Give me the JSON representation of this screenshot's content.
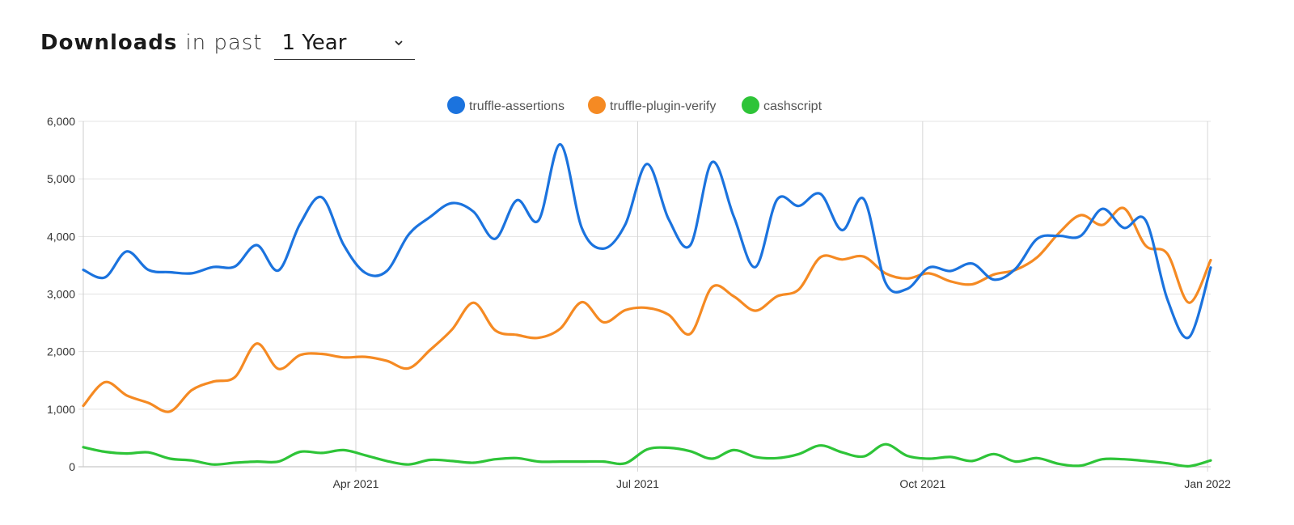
{
  "header": {
    "title_strong": "Downloads",
    "title_rest": "in past",
    "period_selected": "1 Year"
  },
  "chart_data": {
    "type": "line",
    "title": "",
    "xlabel": "",
    "ylabel": "",
    "ylim": [
      0,
      6000
    ],
    "y_ticks": [
      "0",
      "1,000",
      "2,000",
      "3,000",
      "4,000",
      "5,000",
      "6,000"
    ],
    "x_range": [
      "2021-01-03",
      "2022-01-02"
    ],
    "x_ticks": [
      {
        "date": "2021-04-01",
        "label": "Apr 2021"
      },
      {
        "date": "2021-07-01",
        "label": "Jul 2021"
      },
      {
        "date": "2021-10-01",
        "label": "Oct 2021"
      },
      {
        "date": "2022-01-01",
        "label": "Jan 2022"
      }
    ],
    "legend_position": "top-center",
    "grid": true,
    "series": [
      {
        "name": "truffle-assertions",
        "color": "#1b73de",
        "points": [
          [
            "2021-01-03",
            3420
          ],
          [
            "2021-01-10",
            3290
          ],
          [
            "2021-01-17",
            3740
          ],
          [
            "2021-01-24",
            3420
          ],
          [
            "2021-01-31",
            3380
          ],
          [
            "2021-02-07",
            3360
          ],
          [
            "2021-02-14",
            3470
          ],
          [
            "2021-02-21",
            3480
          ],
          [
            "2021-02-28",
            3850
          ],
          [
            "2021-03-07",
            3410
          ],
          [
            "2021-03-14",
            4220
          ],
          [
            "2021-03-21",
            4680
          ],
          [
            "2021-03-28",
            3860
          ],
          [
            "2021-04-04",
            3370
          ],
          [
            "2021-04-11",
            3400
          ],
          [
            "2021-04-18",
            4030
          ],
          [
            "2021-04-25",
            4340
          ],
          [
            "2021-05-02",
            4580
          ],
          [
            "2021-05-09",
            4430
          ],
          [
            "2021-05-16",
            3960
          ],
          [
            "2021-05-23",
            4630
          ],
          [
            "2021-05-30",
            4280
          ],
          [
            "2021-06-06",
            5600
          ],
          [
            "2021-06-13",
            4140
          ],
          [
            "2021-06-20",
            3790
          ],
          [
            "2021-06-27",
            4210
          ],
          [
            "2021-07-04",
            5260
          ],
          [
            "2021-07-11",
            4300
          ],
          [
            "2021-07-18",
            3850
          ],
          [
            "2021-07-25",
            5290
          ],
          [
            "2021-08-01",
            4350
          ],
          [
            "2021-08-08",
            3470
          ],
          [
            "2021-08-15",
            4640
          ],
          [
            "2021-08-22",
            4530
          ],
          [
            "2021-08-29",
            4740
          ],
          [
            "2021-09-05",
            4110
          ],
          [
            "2021-09-12",
            4650
          ],
          [
            "2021-09-19",
            3200
          ],
          [
            "2021-09-26",
            3090
          ],
          [
            "2021-10-03",
            3460
          ],
          [
            "2021-10-10",
            3400
          ],
          [
            "2021-10-17",
            3530
          ],
          [
            "2021-10-24",
            3250
          ],
          [
            "2021-10-31",
            3440
          ],
          [
            "2021-11-07",
            3960
          ],
          [
            "2021-11-14",
            4010
          ],
          [
            "2021-11-21",
            4010
          ],
          [
            "2021-11-28",
            4480
          ],
          [
            "2021-12-05",
            4150
          ],
          [
            "2021-12-12",
            4280
          ],
          [
            "2021-12-19",
            2910
          ],
          [
            "2021-12-26",
            2250
          ],
          [
            "2022-01-02",
            3460
          ]
        ]
      },
      {
        "name": "truffle-plugin-verify",
        "color": "#f58a23",
        "points": [
          [
            "2021-01-03",
            1060
          ],
          [
            "2021-01-10",
            1470
          ],
          [
            "2021-01-17",
            1240
          ],
          [
            "2021-01-24",
            1110
          ],
          [
            "2021-01-31",
            960
          ],
          [
            "2021-02-07",
            1330
          ],
          [
            "2021-02-14",
            1480
          ],
          [
            "2021-02-21",
            1560
          ],
          [
            "2021-02-28",
            2140
          ],
          [
            "2021-03-07",
            1700
          ],
          [
            "2021-03-14",
            1940
          ],
          [
            "2021-03-21",
            1960
          ],
          [
            "2021-03-28",
            1900
          ],
          [
            "2021-04-04",
            1910
          ],
          [
            "2021-04-11",
            1840
          ],
          [
            "2021-04-18",
            1710
          ],
          [
            "2021-04-25",
            2030
          ],
          [
            "2021-05-02",
            2380
          ],
          [
            "2021-05-09",
            2850
          ],
          [
            "2021-05-16",
            2370
          ],
          [
            "2021-05-23",
            2290
          ],
          [
            "2021-05-30",
            2240
          ],
          [
            "2021-06-06",
            2400
          ],
          [
            "2021-06-13",
            2860
          ],
          [
            "2021-06-20",
            2510
          ],
          [
            "2021-06-27",
            2720
          ],
          [
            "2021-07-04",
            2760
          ],
          [
            "2021-07-11",
            2640
          ],
          [
            "2021-07-18",
            2310
          ],
          [
            "2021-07-25",
            3120
          ],
          [
            "2021-08-01",
            2960
          ],
          [
            "2021-08-08",
            2710
          ],
          [
            "2021-08-15",
            2960
          ],
          [
            "2021-08-22",
            3080
          ],
          [
            "2021-08-29",
            3640
          ],
          [
            "2021-09-05",
            3600
          ],
          [
            "2021-09-12",
            3650
          ],
          [
            "2021-09-19",
            3360
          ],
          [
            "2021-09-26",
            3270
          ],
          [
            "2021-10-03",
            3360
          ],
          [
            "2021-10-10",
            3220
          ],
          [
            "2021-10-17",
            3170
          ],
          [
            "2021-10-24",
            3340
          ],
          [
            "2021-10-31",
            3420
          ],
          [
            "2021-11-07",
            3640
          ],
          [
            "2021-11-14",
            4060
          ],
          [
            "2021-11-21",
            4370
          ],
          [
            "2021-11-28",
            4200
          ],
          [
            "2021-12-05",
            4490
          ],
          [
            "2021-12-12",
            3840
          ],
          [
            "2021-12-19",
            3700
          ],
          [
            "2021-12-26",
            2850
          ],
          [
            "2022-01-02",
            3590
          ]
        ]
      },
      {
        "name": "cashscript",
        "color": "#2ec438",
        "points": [
          [
            "2021-01-03",
            340
          ],
          [
            "2021-01-10",
            260
          ],
          [
            "2021-01-17",
            230
          ],
          [
            "2021-01-24",
            250
          ],
          [
            "2021-01-31",
            140
          ],
          [
            "2021-02-07",
            110
          ],
          [
            "2021-02-14",
            40
          ],
          [
            "2021-02-21",
            70
          ],
          [
            "2021-02-28",
            90
          ],
          [
            "2021-03-07",
            90
          ],
          [
            "2021-03-14",
            260
          ],
          [
            "2021-03-21",
            240
          ],
          [
            "2021-03-28",
            290
          ],
          [
            "2021-04-04",
            200
          ],
          [
            "2021-04-11",
            100
          ],
          [
            "2021-04-18",
            40
          ],
          [
            "2021-04-25",
            120
          ],
          [
            "2021-05-02",
            100
          ],
          [
            "2021-05-09",
            70
          ],
          [
            "2021-05-16",
            130
          ],
          [
            "2021-05-23",
            150
          ],
          [
            "2021-05-30",
            90
          ],
          [
            "2021-06-06",
            90
          ],
          [
            "2021-06-13",
            90
          ],
          [
            "2021-06-20",
            90
          ],
          [
            "2021-06-27",
            60
          ],
          [
            "2021-07-04",
            300
          ],
          [
            "2021-07-11",
            330
          ],
          [
            "2021-07-18",
            270
          ],
          [
            "2021-07-25",
            140
          ],
          [
            "2021-08-01",
            290
          ],
          [
            "2021-08-08",
            170
          ],
          [
            "2021-08-15",
            150
          ],
          [
            "2021-08-22",
            220
          ],
          [
            "2021-08-29",
            370
          ],
          [
            "2021-09-05",
            250
          ],
          [
            "2021-09-12",
            180
          ],
          [
            "2021-09-19",
            390
          ],
          [
            "2021-09-26",
            190
          ],
          [
            "2021-10-03",
            140
          ],
          [
            "2021-10-10",
            170
          ],
          [
            "2021-10-17",
            100
          ],
          [
            "2021-10-24",
            220
          ],
          [
            "2021-10-31",
            90
          ],
          [
            "2021-11-07",
            150
          ],
          [
            "2021-11-14",
            50
          ],
          [
            "2021-11-21",
            20
          ],
          [
            "2021-11-28",
            130
          ],
          [
            "2021-12-05",
            130
          ],
          [
            "2021-12-12",
            100
          ],
          [
            "2021-12-19",
            60
          ],
          [
            "2021-12-26",
            10
          ],
          [
            "2022-01-02",
            110
          ]
        ]
      }
    ]
  }
}
